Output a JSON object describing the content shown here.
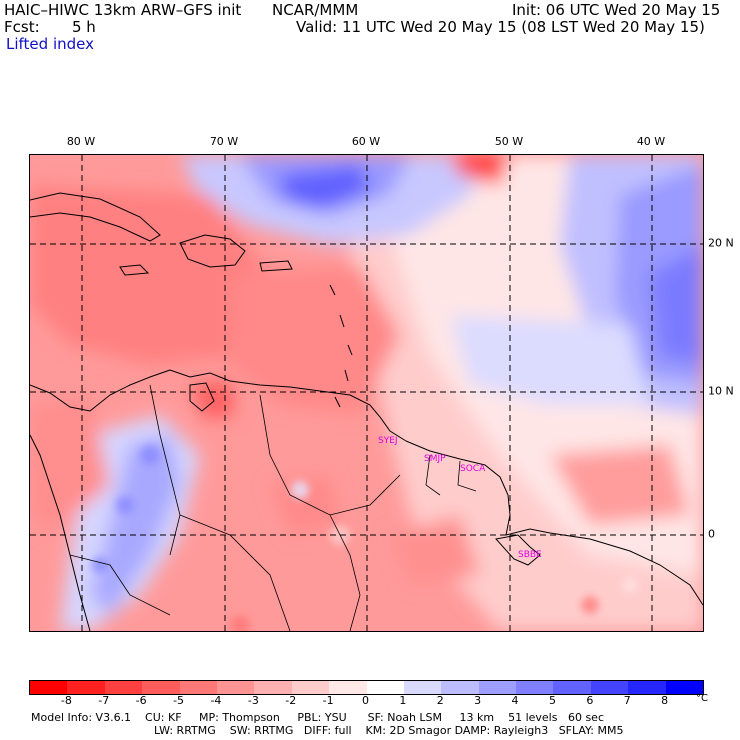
{
  "header": {
    "model": "HAIC–HIWC 13km ARW–GFS init",
    "org": "NCAR/MMM",
    "init": "Init: 06 UTC Wed 20 May 15",
    "fcst_label": "Fcst:",
    "fcst_value": "5 h",
    "valid": "Valid: 11 UTC Wed 20 May 15 (08 LST Wed 20 May 15)",
    "field": "Lifted index"
  },
  "map": {
    "lon_labels": [
      "80 W",
      "70 W",
      "60 W",
      "50 W",
      "40 W"
    ],
    "lat_labels": [
      "20 N",
      "10 N",
      "0"
    ],
    "stations": [
      "SYEJ",
      "SMJP",
      "SOCA",
      "SBBE"
    ]
  },
  "colorbar": {
    "labels": [
      "-8",
      "-7",
      "-6",
      "-5",
      "-4",
      "-3",
      "-2",
      "-1",
      "0",
      "1",
      "2",
      "3",
      "4",
      "5",
      "6",
      "7",
      "8"
    ],
    "unit": "°C",
    "colors": [
      "#ff0000",
      "#ff2020",
      "#ff4040",
      "#ff5c5c",
      "#ff7878",
      "#ff9494",
      "#ffb0b0",
      "#ffcccc",
      "#ffe8e8",
      "#ffffff",
      "#dadaff",
      "#bcbcff",
      "#9e9eff",
      "#8080ff",
      "#6262ff",
      "#4444ff",
      "#2626ff",
      "#0000ff"
    ]
  },
  "footer": {
    "line1": "Model Info: V3.6.1    CU: KF     MP: Thompson     PBL: YSU      SF: Noah LSM     13 km    51 levels   60 sec",
    "line2": "LW: RRTMG    SW: RRTMG   DIFF: full    KM: 2D Smagor DAMP: Rayleigh3   SFLAY: MM5"
  }
}
